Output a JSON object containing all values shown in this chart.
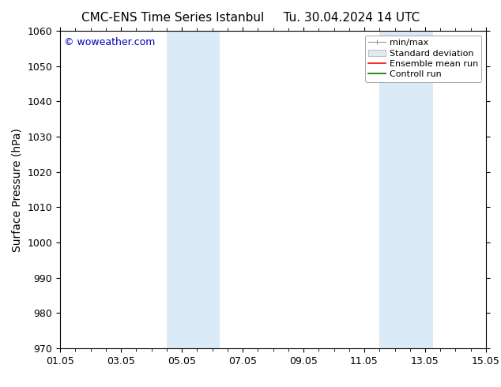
{
  "title_left": "CMC-ENS Time Series Istanbul",
  "title_right": "Tu. 30.04.2024 14 UTC",
  "ylabel": "Surface Pressure (hPa)",
  "ylim": [
    970,
    1060
  ],
  "yticks": [
    970,
    980,
    990,
    1000,
    1010,
    1020,
    1030,
    1040,
    1050,
    1060
  ],
  "xtick_labels": [
    "01.05",
    "03.05",
    "05.05",
    "07.05",
    "09.05",
    "11.05",
    "13.05",
    "15.05"
  ],
  "xtick_positions": [
    0,
    2,
    4,
    6,
    8,
    10,
    12,
    14
  ],
  "x_start": 0,
  "x_end": 14,
  "shaded_regions": [
    {
      "xmin": 3.5,
      "xmax": 5.25
    },
    {
      "xmin": 10.5,
      "xmax": 12.25
    }
  ],
  "shaded_color": "#dbeaf7",
  "watermark_text": "© woweather.com",
  "watermark_color": "#0000bb",
  "watermark_fontsize": 9,
  "legend_labels": [
    "min/max",
    "Standard deviation",
    "Ensemble mean run",
    "Controll run"
  ],
  "legend_colors_line": [
    "#999999",
    "#cccccc",
    "#ff0000",
    "#007700"
  ],
  "background_color": "#ffffff",
  "title_fontsize": 11,
  "axis_label_fontsize": 10,
  "tick_fontsize": 9,
  "legend_fontsize": 8
}
